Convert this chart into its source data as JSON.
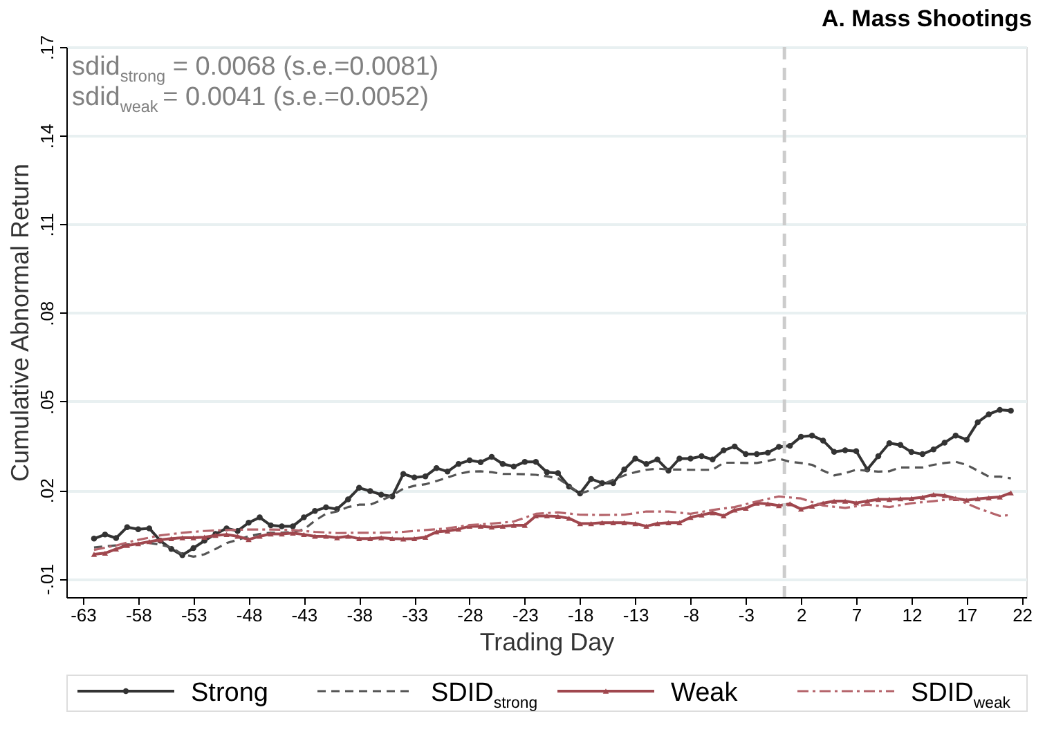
{
  "chart_data": {
    "type": "line",
    "title": "A. Mass Shootings",
    "xlabel": "Trading Day",
    "ylabel": "Cumulative Abnormal Return",
    "x": [
      -62,
      -61,
      -60,
      -59,
      -58,
      -57,
      -56,
      -55,
      -54,
      -53,
      -52,
      -51,
      -50,
      -49,
      -48,
      -47,
      -46,
      -45,
      -44,
      -43,
      -42,
      -41,
      -40,
      -39,
      -38,
      -37,
      -36,
      -35,
      -34,
      -33,
      -32,
      -31,
      -30,
      -29,
      -28,
      -27,
      -26,
      -25,
      -24,
      -23,
      -22,
      -21,
      -20,
      -19,
      -18,
      -17,
      -16,
      -15,
      -14,
      -13,
      -12,
      -11,
      -10,
      -9,
      -8,
      -7,
      -6,
      -5,
      -4,
      -3,
      -2,
      -1,
      0,
      1,
      2,
      3,
      4,
      5,
      6,
      7,
      8,
      9,
      10,
      11,
      12,
      13,
      14,
      15,
      16,
      17,
      18,
      19,
      20,
      21
    ],
    "series": [
      {
        "name": "Strong",
        "color": "#333333",
        "marker": "circle",
        "line_style": "solid",
        "values": [
          0.0036,
          0.005,
          0.0038,
          0.0075,
          0.0068,
          0.0071,
          0.0029,
          0.0001,
          -0.002,
          0.0004,
          0.0029,
          0.0052,
          0.0071,
          0.0062,
          0.009,
          0.0108,
          0.0081,
          0.0078,
          0.0078,
          0.0108,
          0.013,
          0.0142,
          0.0136,
          0.0169,
          0.0208,
          0.0197,
          0.0185,
          0.0179,
          0.0255,
          0.0243,
          0.0247,
          0.0275,
          0.0263,
          0.0289,
          0.0301,
          0.0295,
          0.0313,
          0.0289,
          0.028,
          0.0296,
          0.0296,
          0.0261,
          0.0258,
          0.0212,
          0.0189,
          0.0238,
          0.0224,
          0.0224,
          0.027,
          0.0307,
          0.0289,
          0.0304,
          0.0266,
          0.0307,
          0.0307,
          0.0315,
          0.0304,
          0.0335,
          0.0348,
          0.0322,
          0.0322,
          0.0327,
          0.0347,
          0.035,
          0.0381,
          0.0385,
          0.0368,
          0.033,
          0.0335,
          0.0332,
          0.027,
          0.0315,
          0.0359,
          0.0353,
          0.0329,
          0.0322,
          0.0338,
          0.0361,
          0.0385,
          0.0371,
          0.043,
          0.0457,
          0.0472,
          0.0469
        ]
      },
      {
        "name": "SDID$_{strong}$",
        "color": "#555555",
        "marker": "none",
        "line_style": "dashed",
        "values": [
          0.0006,
          0.001,
          0.0013,
          0.0016,
          0.0019,
          0.0021,
          0.0016,
          0.0006,
          -0.0017,
          -0.0025,
          -0.0017,
          0.0001,
          0.0021,
          0.0032,
          0.0044,
          0.0052,
          0.0056,
          0.0056,
          0.0059,
          0.0067,
          0.0097,
          0.012,
          0.0128,
          0.0143,
          0.0151,
          0.0151,
          0.0166,
          0.0182,
          0.0205,
          0.0215,
          0.022,
          0.0231,
          0.0243,
          0.0255,
          0.0263,
          0.0264,
          0.0261,
          0.0255,
          0.0255,
          0.0254,
          0.0252,
          0.0247,
          0.024,
          0.0215,
          0.0189,
          0.02,
          0.022,
          0.0235,
          0.025,
          0.0261,
          0.0269,
          0.0273,
          0.027,
          0.027,
          0.0269,
          0.0269,
          0.0269,
          0.0293,
          0.0293,
          0.0292,
          0.0292,
          0.0299,
          0.0307,
          0.0296,
          0.0292,
          0.0286,
          0.0266,
          0.025,
          0.0258,
          0.0269,
          0.0266,
          0.0263,
          0.0264,
          0.0277,
          0.0277,
          0.0277,
          0.0286,
          0.0292,
          0.0296,
          0.0286,
          0.0266,
          0.0246,
          0.0246,
          0.024
        ]
      },
      {
        "name": "Weak",
        "color": "#a0474e",
        "marker": "triangle",
        "line_style": "solid",
        "values": [
          -0.0017,
          -0.0013,
          0.0001,
          0.0013,
          0.0019,
          0.0026,
          0.0032,
          0.0036,
          0.0039,
          0.0039,
          0.0041,
          0.0047,
          0.005,
          0.0044,
          0.0033,
          0.0044,
          0.0052,
          0.0052,
          0.0055,
          0.005,
          0.0044,
          0.0044,
          0.0039,
          0.0044,
          0.0036,
          0.0036,
          0.0039,
          0.0036,
          0.0035,
          0.0036,
          0.0041,
          0.0059,
          0.0062,
          0.0068,
          0.0078,
          0.0078,
          0.0075,
          0.0078,
          0.0081,
          0.0081,
          0.0113,
          0.0113,
          0.0111,
          0.0105,
          0.0087,
          0.0087,
          0.009,
          0.009,
          0.009,
          0.0087,
          0.0078,
          0.0087,
          0.009,
          0.009,
          0.0108,
          0.0116,
          0.0124,
          0.0113,
          0.0133,
          0.0139,
          0.0156,
          0.0154,
          0.0148,
          0.0154,
          0.0136,
          0.0146,
          0.0156,
          0.0163,
          0.0163,
          0.0157,
          0.0163,
          0.0169,
          0.0169,
          0.0171,
          0.0172,
          0.0176,
          0.0185,
          0.0182,
          0.0172,
          0.0166,
          0.0171,
          0.0174,
          0.0177,
          0.0191
        ]
      },
      {
        "name": "SDID$_{weak}$",
        "color": "#b5646b",
        "marker": "none",
        "line_style": "dashdot",
        "x": [
          -62,
          -60,
          -58,
          -56,
          -54,
          -52,
          -50,
          -48,
          -46,
          -44,
          -42,
          -40,
          -38,
          -36,
          -34,
          -32,
          -30,
          -28,
          -26,
          -24,
          -22,
          -20,
          -18,
          -16,
          -14,
          -12,
          -10,
          -8,
          -6,
          -4,
          -2,
          0,
          2,
          4,
          6,
          8,
          10,
          12,
          14,
          16,
          18,
          20,
          21
        ],
        "values": [
          -0.0002,
          0.0013,
          0.0032,
          0.0047,
          0.0056,
          0.0062,
          0.0065,
          0.0067,
          0.0067,
          0.0065,
          0.0059,
          0.0055,
          0.0056,
          0.0056,
          0.0059,
          0.0065,
          0.0071,
          0.0082,
          0.0087,
          0.0094,
          0.012,
          0.0125,
          0.0117,
          0.0116,
          0.0117,
          0.0128,
          0.0128,
          0.012,
          0.0133,
          0.0143,
          0.0162,
          0.0179,
          0.0172,
          0.0148,
          0.014,
          0.0151,
          0.0143,
          0.0156,
          0.0163,
          0.0171,
          0.0139,
          0.0113,
          0.0116
        ]
      }
    ],
    "xlim": [
      -64.5,
      22.4
    ],
    "xticks": [
      -63,
      -58,
      -53,
      -48,
      -43,
      -38,
      -33,
      -28,
      -23,
      -18,
      -13,
      -8,
      -3,
      2,
      7,
      12,
      17,
      22
    ],
    "ylim": [
      -0.0162,
      0.17
    ],
    "yticks": [
      {
        "value": -0.01,
        "label": "-.01"
      },
      {
        "value": 0.02,
        "label": ".02"
      },
      {
        "value": 0.05,
        "label": ".05"
      },
      {
        "value": 0.08,
        "label": ".08"
      },
      {
        "value": 0.11,
        "label": ".11"
      },
      {
        "value": 0.14,
        "label": ".14"
      },
      {
        "value": 0.17,
        "label": ".17"
      }
    ],
    "grid": "y",
    "legend": "bottom",
    "ref_lines": [
      {
        "axis": "x",
        "value": 0.5,
        "color": "#cccccc",
        "line_style": "dashed"
      }
    ],
    "annotations": [
      "sdid$_{strong}$ = 0.0068 (s.e.=0.0081)",
      "sdid$_{weak}$ = 0.0041 (s.e.=0.0052)"
    ]
  }
}
